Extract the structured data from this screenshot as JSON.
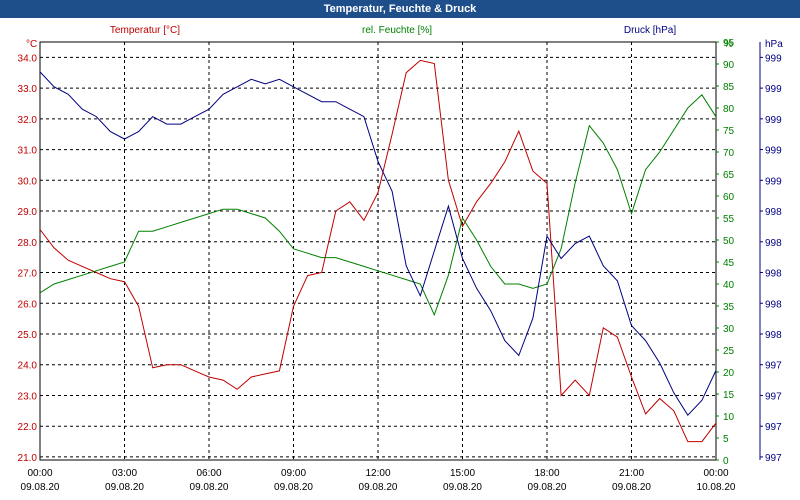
{
  "title": "Temperatur, Feuchte & Druck",
  "colors": {
    "titlebar": "#1f4f8b",
    "grid": "#000000",
    "temperature": "#c00000",
    "humidity": "#008000",
    "pressure": "#000080",
    "background": "#ffffff"
  },
  "chart_data": {
    "type": "line",
    "x": {
      "times": [
        "00:00",
        "03:00",
        "06:00",
        "09:00",
        "12:00",
        "15:00",
        "18:00",
        "21:00",
        "00:00"
      ],
      "dates": [
        "09.08.20",
        "09.08.20",
        "09.08.20",
        "09.08.20",
        "09.08.20",
        "09.08.20",
        "09.08.20",
        "09.08.20",
        "10.08.20"
      ],
      "range": [
        "09.08.20 00:00",
        "10.08.20 00:00"
      ],
      "grid": true
    },
    "series": [
      {
        "name": "Temperatur [°C]",
        "unit": "°C",
        "axis": "left",
        "color": "#c00000",
        "ylim": [
          20.9,
          34.5
        ],
        "ticks": [
          "21.0",
          "22.0",
          "23.0",
          "24.0",
          "25.0",
          "26.0",
          "27.0",
          "28.0",
          "29.0",
          "30.0",
          "31.0",
          "32.0",
          "33.0",
          "34.0"
        ],
        "values": [
          28.4,
          27.8,
          27.4,
          27.2,
          27.0,
          26.8,
          26.7,
          25.9,
          23.9,
          24.0,
          24.0,
          23.8,
          23.6,
          23.5,
          23.2,
          23.6,
          23.7,
          23.8,
          25.9,
          26.9,
          27.0,
          29.0,
          29.3,
          28.7,
          29.6,
          31.5,
          33.5,
          33.9,
          33.8,
          30.0,
          28.5,
          29.3,
          29.9,
          30.6,
          31.6,
          30.3,
          29.9,
          23.0,
          23.5,
          23.0,
          25.2,
          24.9,
          23.6,
          22.4,
          22.9,
          22.5,
          21.5,
          21.5,
          22.1
        ]
      },
      {
        "name": "rel. Feuchte [%]",
        "unit": "%",
        "axis": "right",
        "color": "#008000",
        "ylim": [
          0,
          95
        ],
        "ticks": [
          "0",
          "5",
          "10",
          "15",
          "20",
          "25",
          "30",
          "35",
          "40",
          "45",
          "50",
          "55",
          "60",
          "65",
          "70",
          "75",
          "80",
          "85",
          "90",
          "95"
        ],
        "values": [
          38,
          40,
          41,
          42,
          43,
          44,
          45,
          52,
          52,
          53,
          54,
          55,
          56,
          57,
          57,
          56,
          55,
          52,
          48,
          47,
          46,
          46,
          45,
          44,
          43,
          42,
          41,
          40,
          33,
          42,
          55,
          50,
          44,
          40,
          40,
          39,
          40,
          48,
          63,
          76,
          72,
          66,
          56,
          66,
          70,
          75,
          80,
          83,
          78
        ]
      },
      {
        "name": "Druck [hPa]",
        "unit": "hPa",
        "axis": "right2",
        "color": "#000080",
        "ylim": [
          996.6,
          999.4
        ],
        "ticks": [
          "997",
          "997",
          "997",
          "997",
          "998",
          "998",
          "998",
          "998",
          "998",
          "999",
          "999",
          "999",
          "999",
          "999"
        ],
        "values": [
          999.2,
          999.1,
          999.05,
          998.95,
          998.9,
          998.8,
          998.75,
          998.8,
          998.9,
          998.85,
          998.85,
          998.9,
          998.95,
          999.05,
          999.1,
          999.15,
          999.12,
          999.15,
          999.1,
          999.05,
          999.0,
          999.0,
          998.95,
          998.9,
          998.6,
          998.4,
          997.9,
          997.7,
          998.0,
          998.3,
          997.95,
          997.75,
          997.6,
          997.4,
          997.3,
          997.55,
          998.1,
          997.95,
          998.05,
          998.1,
          997.9,
          997.8,
          997.5,
          997.4,
          997.25,
          997.05,
          996.9,
          997.0,
          997.2
        ]
      }
    ],
    "y_unit_labels": {
      "left": "°C",
      "right": "%",
      "right2": "hPa"
    }
  }
}
